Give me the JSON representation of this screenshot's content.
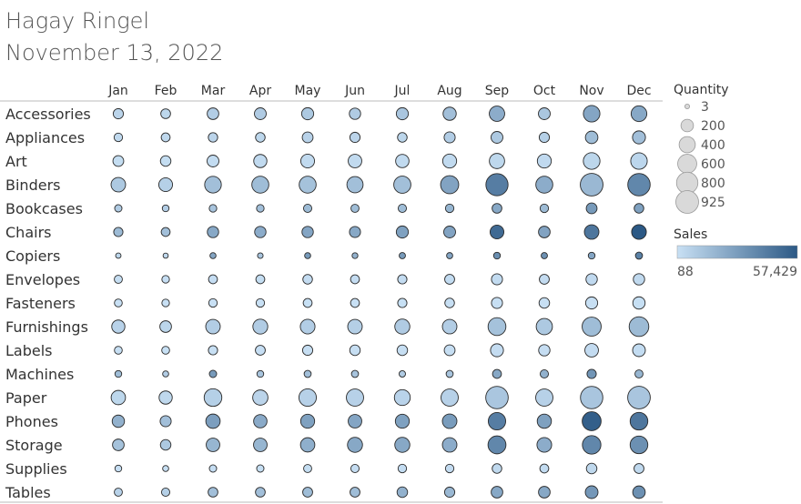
{
  "header": {
    "author": "Hagay Ringel",
    "date": "November 13, 2022"
  },
  "legend": {
    "size_title": "Quantity",
    "size_values": [
      "3",
      "200",
      "400",
      "600",
      "800",
      "925"
    ],
    "color_title": "Sales",
    "color_min_label": "88",
    "color_max_label": "57,429",
    "color_low": "#c8e0f4",
    "color_high": "#2c5985"
  },
  "chart_data": {
    "type": "scatter",
    "subtype": "bubble-grid",
    "title": "",
    "columns": [
      "Jan",
      "Feb",
      "Mar",
      "Apr",
      "May",
      "Jun",
      "Jul",
      "Aug",
      "Sep",
      "Oct",
      "Nov",
      "Dec"
    ],
    "rows": [
      "Accessories",
      "Appliances",
      "Art",
      "Binders",
      "Bookcases",
      "Chairs",
      "Copiers",
      "Envelopes",
      "Fasteners",
      "Furnishings",
      "Labels",
      "Machines",
      "Paper",
      "Phones",
      "Storage",
      "Supplies",
      "Tables"
    ],
    "size_measure": "Quantity",
    "color_measure": "Sales",
    "size_range": [
      3,
      925
    ],
    "color_range": [
      88,
      57429
    ],
    "quantity": [
      [
        110,
        95,
        160,
        170,
        180,
        150,
        180,
        230,
        350,
        170,
        420,
        370
      ],
      [
        60,
        70,
        85,
        90,
        130,
        110,
        90,
        140,
        170,
        110,
        200,
        220
      ],
      [
        130,
        120,
        170,
        230,
        260,
        250,
        240,
        270,
        340,
        270,
        430,
        420
      ],
      [
        300,
        260,
        430,
        450,
        450,
        400,
        460,
        530,
        870,
        450,
        920,
        890
      ],
      [
        35,
        25,
        40,
        40,
        55,
        50,
        55,
        60,
        95,
        60,
        130,
        90
      ],
      [
        80,
        70,
        150,
        150,
        150,
        140,
        180,
        170,
        260,
        160,
        300,
        310
      ],
      [
        8,
        6,
        15,
        10,
        15,
        12,
        18,
        16,
        25,
        18,
        25,
        30
      ],
      [
        50,
        40,
        70,
        70,
        90,
        70,
        80,
        100,
        140,
        100,
        150,
        150
      ],
      [
        45,
        40,
        60,
        60,
        70,
        70,
        80,
        90,
        140,
        120,
        180,
        190
      ],
      [
        230,
        160,
        300,
        320,
        310,
        300,
        330,
        300,
        510,
        400,
        600,
        650
      ],
      [
        45,
        45,
        80,
        100,
        110,
        120,
        120,
        130,
        220,
        150,
        250,
        210
      ],
      [
        25,
        15,
        35,
        25,
        30,
        30,
        20,
        30,
        70,
        55,
        80,
        50
      ],
      [
        290,
        230,
        500,
        340,
        480,
        470,
        380,
        470,
        900,
        470,
        890,
        910
      ],
      [
        190,
        140,
        290,
        240,
        270,
        250,
        270,
        300,
        480,
        280,
        590,
        500
      ],
      [
        160,
        120,
        250,
        250,
        290,
        330,
        330,
        300,
        520,
        310,
        560,
        500
      ],
      [
        25,
        15,
        35,
        35,
        50,
        55,
        60,
        60,
        90,
        70,
        120,
        100
      ],
      [
        50,
        55,
        95,
        95,
        100,
        100,
        120,
        110,
        160,
        160,
        210,
        200
      ]
    ],
    "sales": [
      [
        5000,
        4000,
        8000,
        9000,
        10000,
        9000,
        11000,
        14000,
        22000,
        11000,
        25000,
        24000
      ],
      [
        3000,
        3500,
        5000,
        4000,
        6000,
        5000,
        4500,
        8000,
        10000,
        7000,
        15000,
        14000
      ],
      [
        1500,
        1400,
        1800,
        2500,
        2700,
        2600,
        2600,
        2800,
        3600,
        2900,
        4500,
        4400
      ],
      [
        10000,
        7000,
        14000,
        15000,
        13000,
        14000,
        14000,
        26000,
        42000,
        22000,
        17000,
        38000
      ],
      [
        9000,
        8000,
        12000,
        14000,
        16000,
        15000,
        15000,
        18000,
        24000,
        16000,
        30000,
        27000
      ],
      [
        16000,
        14000,
        24000,
        22000,
        25000,
        24000,
        27000,
        26000,
        50000,
        26000,
        45000,
        57429
      ],
      [
        4000,
        3000,
        25000,
        12000,
        30000,
        20000,
        30000,
        25000,
        35000,
        34000,
        25000,
        40000
      ],
      [
        1000,
        800,
        1300,
        1400,
        1700,
        1600,
        1600,
        1800,
        2400,
        2000,
        2900,
        3000
      ],
      [
        88,
        150,
        200,
        200,
        300,
        250,
        300,
        350,
        500,
        400,
        600,
        700
      ],
      [
        6000,
        4500,
        8000,
        8500,
        8000,
        7500,
        9000,
        8000,
        13000,
        10000,
        15000,
        16000
      ],
      [
        400,
        300,
        600,
        800,
        900,
        1000,
        900,
        1000,
        1700,
        1200,
        2000,
        1800
      ],
      [
        15000,
        8000,
        30000,
        12000,
        14000,
        12000,
        9000,
        12000,
        24000,
        20000,
        32000,
        18000
      ],
      [
        4000,
        3500,
        7000,
        5000,
        6500,
        6500,
        5500,
        6500,
        11000,
        6500,
        11500,
        11500
      ],
      [
        20000,
        14000,
        28000,
        23000,
        27000,
        25000,
        27000,
        29000,
        42000,
        27000,
        55000,
        45000
      ],
      [
        13000,
        10000,
        18000,
        18000,
        21000,
        24000,
        24000,
        22000,
        38000,
        22000,
        38000,
        34000
      ],
      [
        800,
        600,
        1200,
        1100,
        1500,
        1700,
        1800,
        2000,
        3000,
        2300,
        3500,
        3200
      ],
      [
        6000,
        7000,
        14000,
        14000,
        15000,
        15000,
        20000,
        17000,
        24000,
        24000,
        31000,
        34000
      ]
    ]
  }
}
